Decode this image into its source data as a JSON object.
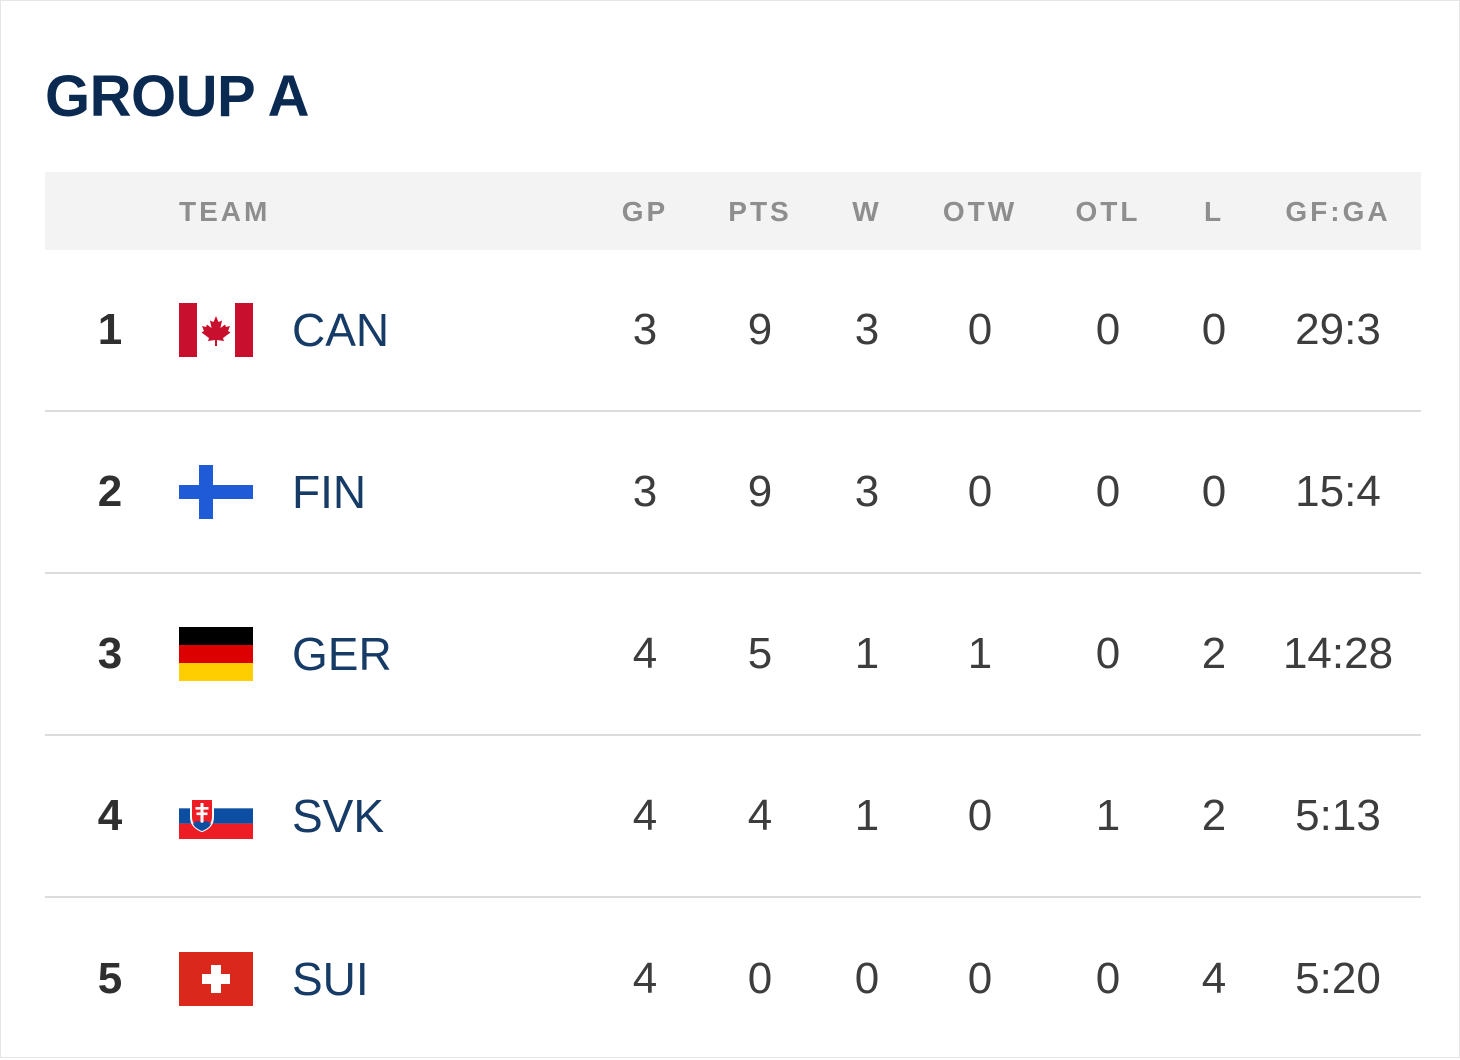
{
  "group_title": "GROUP A",
  "columns": {
    "team": "TEAM",
    "gp": "GP",
    "pts": "PTS",
    "w": "W",
    "otw": "OTW",
    "otl": "OTL",
    "l": "L",
    "gfga": "GF:GA"
  },
  "rows": [
    {
      "rank": "1",
      "team": "CAN",
      "flag": "canada-flag-icon",
      "gp": "3",
      "pts": "9",
      "w": "3",
      "otw": "0",
      "otl": "0",
      "l": "0",
      "gfga": "29:3"
    },
    {
      "rank": "2",
      "team": "FIN",
      "flag": "finland-flag-icon",
      "gp": "3",
      "pts": "9",
      "w": "3",
      "otw": "0",
      "otl": "0",
      "l": "0",
      "gfga": "15:4"
    },
    {
      "rank": "3",
      "team": "GER",
      "flag": "germany-flag-icon",
      "gp": "4",
      "pts": "5",
      "w": "1",
      "otw": "1",
      "otl": "0",
      "l": "2",
      "gfga": "14:28"
    },
    {
      "rank": "4",
      "team": "SVK",
      "flag": "slovakia-flag-icon",
      "gp": "4",
      "pts": "4",
      "w": "1",
      "otw": "0",
      "otl": "1",
      "l": "2",
      "gfga": "5:13"
    },
    {
      "rank": "5",
      "team": "SUI",
      "flag": "switzerland-flag-icon",
      "gp": "4",
      "pts": "0",
      "w": "0",
      "otw": "0",
      "otl": "0",
      "l": "4",
      "gfga": "5:20"
    }
  ],
  "colors": {
    "title": "#0b2a52",
    "team_text": "#163b66",
    "header_bg": "#f3f3f3",
    "header_text": "#8e8e8e",
    "divider": "#dcdcdc"
  }
}
